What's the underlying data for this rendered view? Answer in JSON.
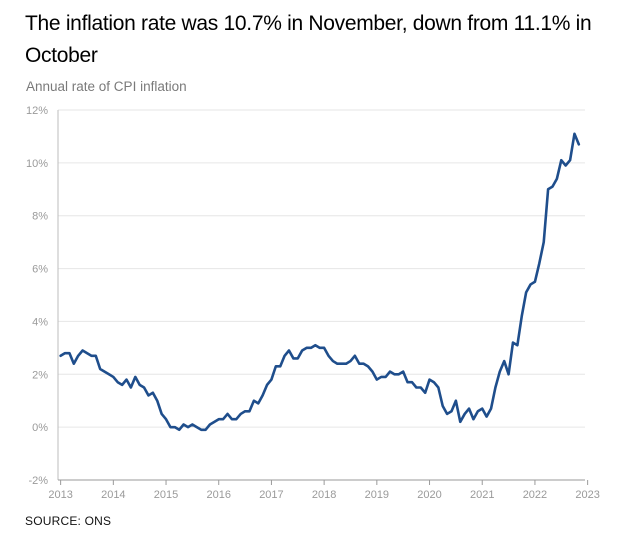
{
  "title": "The inflation rate was 10.7% in November, down from 11.1% in October",
  "subtitle": "Annual rate of CPI inflation",
  "source": "SOURCE: ONS",
  "colors": {
    "line": "#1f4e8c",
    "grid": "#e6e6e6",
    "axis": "#9a9a9a",
    "tick_text": "#9a9a9a"
  },
  "chart_data": {
    "type": "line",
    "title": "The inflation rate was 10.7% in November, down from 11.1% in October",
    "subtitle": "Annual rate of CPI inflation",
    "xlabel": "",
    "ylabel": "",
    "grid": true,
    "xlim": [
      2012.95,
      2022.95
    ],
    "ylim": [
      -2,
      12
    ],
    "y_ticks": [
      -2,
      0,
      2,
      4,
      6,
      8,
      10,
      12
    ],
    "y_tick_labels": [
      "-2%",
      "0%",
      "2%",
      "4%",
      "6%",
      "8%",
      "10%",
      "12%"
    ],
    "x_ticks": [
      2013,
      2014,
      2015,
      2016,
      2017,
      2018,
      2019,
      2020,
      2021,
      2022,
      2023
    ],
    "x_tick_labels": [
      "2013",
      "2014",
      "2015",
      "2016",
      "2017",
      "2018",
      "2019",
      "2020",
      "2021",
      "2022",
      "2023"
    ],
    "series": [
      {
        "color": "#1f4e8c",
        "x": [
          2013.0,
          2013.083,
          2013.167,
          2013.25,
          2013.333,
          2013.417,
          2013.5,
          2013.583,
          2013.667,
          2013.75,
          2013.833,
          2013.917,
          2014.0,
          2014.083,
          2014.167,
          2014.25,
          2014.333,
          2014.417,
          2014.5,
          2014.583,
          2014.667,
          2014.75,
          2014.833,
          2014.917,
          2015.0,
          2015.083,
          2015.167,
          2015.25,
          2015.333,
          2015.417,
          2015.5,
          2015.583,
          2015.667,
          2015.75,
          2015.833,
          2015.917,
          2016.0,
          2016.083,
          2016.167,
          2016.25,
          2016.333,
          2016.417,
          2016.5,
          2016.583,
          2016.667,
          2016.75,
          2016.833,
          2016.917,
          2017.0,
          2017.083,
          2017.167,
          2017.25,
          2017.333,
          2017.417,
          2017.5,
          2017.583,
          2017.667,
          2017.75,
          2017.833,
          2017.917,
          2018.0,
          2018.083,
          2018.167,
          2018.25,
          2018.333,
          2018.417,
          2018.5,
          2018.583,
          2018.667,
          2018.75,
          2018.833,
          2018.917,
          2019.0,
          2019.083,
          2019.167,
          2019.25,
          2019.333,
          2019.417,
          2019.5,
          2019.583,
          2019.667,
          2019.75,
          2019.833,
          2019.917,
          2020.0,
          2020.083,
          2020.167,
          2020.25,
          2020.333,
          2020.417,
          2020.5,
          2020.583,
          2020.667,
          2020.75,
          2020.833,
          2020.917,
          2021.0,
          2021.083,
          2021.167,
          2021.25,
          2021.333,
          2021.417,
          2021.5,
          2021.583,
          2021.667,
          2021.75,
          2021.833,
          2021.917,
          2022.0,
          2022.083,
          2022.167,
          2022.25,
          2022.333,
          2022.417,
          2022.5,
          2022.583,
          2022.667,
          2022.75,
          2022.833
        ],
        "values": [
          2.7,
          2.8,
          2.8,
          2.4,
          2.7,
          2.9,
          2.8,
          2.7,
          2.7,
          2.2,
          2.1,
          2.0,
          1.9,
          1.7,
          1.6,
          1.8,
          1.5,
          1.9,
          1.6,
          1.5,
          1.2,
          1.3,
          1.0,
          0.5,
          0.3,
          0.0,
          0.0,
          -0.1,
          0.1,
          0.0,
          0.1,
          0.0,
          -0.1,
          -0.1,
          0.1,
          0.2,
          0.3,
          0.3,
          0.5,
          0.3,
          0.3,
          0.5,
          0.6,
          0.6,
          1.0,
          0.9,
          1.2,
          1.6,
          1.8,
          2.3,
          2.3,
          2.7,
          2.9,
          2.6,
          2.6,
          2.9,
          3.0,
          3.0,
          3.1,
          3.0,
          3.0,
          2.7,
          2.5,
          2.4,
          2.4,
          2.4,
          2.5,
          2.7,
          2.4,
          2.4,
          2.3,
          2.1,
          1.8,
          1.9,
          1.9,
          2.1,
          2.0,
          2.0,
          2.1,
          1.7,
          1.7,
          1.5,
          1.5,
          1.3,
          1.8,
          1.7,
          1.5,
          0.8,
          0.5,
          0.6,
          1.0,
          0.2,
          0.5,
          0.7,
          0.3,
          0.6,
          0.7,
          0.4,
          0.7,
          1.5,
          2.1,
          2.5,
          2.0,
          3.2,
          3.1,
          4.2,
          5.1,
          5.4,
          5.5,
          6.2,
          7.0,
          9.0,
          9.1,
          9.4,
          10.1,
          9.9,
          10.1,
          11.1,
          10.7
        ]
      }
    ]
  }
}
